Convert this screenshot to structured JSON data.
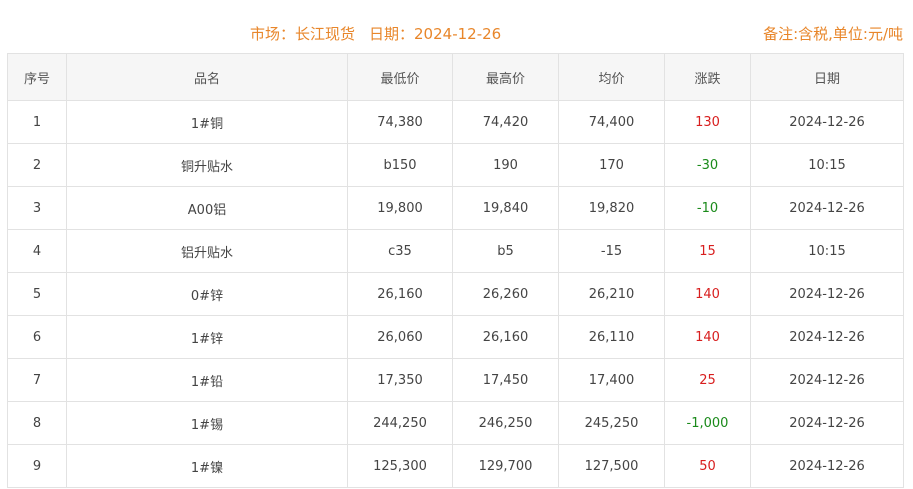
{
  "header": {
    "market": "市场：长江现货",
    "date": "日期：2024-12-26",
    "note": "备注:含税,单位:元/吨"
  },
  "columns": [
    "序号",
    "品名",
    "最低价",
    "最高价",
    "均价",
    "涨跌",
    "日期"
  ],
  "rows": [
    [
      "1",
      "1#铜",
      "74,380",
      "74,420",
      "74,400",
      "130",
      "2024-12-26"
    ],
    [
      "2",
      "铜升贴水",
      "b150",
      "190",
      "170",
      "-30",
      "10:15"
    ],
    [
      "3",
      "A00铝",
      "19,800",
      "19,840",
      "19,820",
      "-10",
      "2024-12-26"
    ],
    [
      "4",
      "铝升贴水",
      "c35",
      "b5",
      "-15",
      "15",
      "10:15"
    ],
    [
      "5",
      "0#锌",
      "26,160",
      "26,260",
      "26,210",
      "140",
      "2024-12-26"
    ],
    [
      "6",
      "1#锌",
      "26,060",
      "26,160",
      "26,110",
      "140",
      "2024-12-26"
    ],
    [
      "7",
      "1#铅",
      "17,350",
      "17,450",
      "17,400",
      "25",
      "2024-12-26"
    ],
    [
      "8",
      "1#锡",
      "244,250",
      "246,250",
      "245,250",
      "-1,000",
      "2024-12-26"
    ],
    [
      "9",
      "1#镍",
      "125,300",
      "129,700",
      "127,500",
      "50",
      "2024-12-26"
    ]
  ],
  "colors": {
    "accent": "#e8862a",
    "up": "#d81e1e",
    "down": "#1a8a1a"
  }
}
